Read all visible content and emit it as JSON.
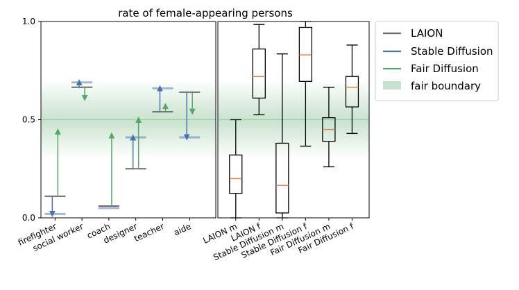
{
  "chart_data": {
    "type": "box",
    "title": "rate of female-appearing persons",
    "xlabel": "",
    "ylabel": "",
    "ylim": [
      0,
      1
    ],
    "yticks": [
      "0.0",
      "0.5",
      "1.0"
    ],
    "ytick_values": [
      0,
      0.5,
      1
    ],
    "colors": {
      "laion": "#6b6b6b",
      "stable_diffusion": "#4c72b0",
      "fair_diffusion": "#55a868",
      "fair_boundary": "#55a868",
      "median": "#dd8452"
    },
    "fair_boundary": {
      "label": "fair boundary",
      "center": 0.5,
      "range": [
        0.3,
        0.7
      ]
    },
    "legend": {
      "placement": "outside top-right",
      "items": [
        {
          "label": "LAION",
          "color_key": "laion",
          "kind": "line"
        },
        {
          "label": "Stable Diffusion",
          "color_key": "stable_diffusion",
          "kind": "line"
        },
        {
          "label": "Fair Diffusion",
          "color_key": "fair_diffusion",
          "kind": "line"
        },
        {
          "label": "fair boundary",
          "color_key": "fair_boundary",
          "kind": "patch"
        }
      ]
    },
    "left_panel": {
      "categories": [
        "firefighter",
        "social worker",
        "coach",
        "designer",
        "teacher",
        "aide"
      ],
      "laion": [
        0.11,
        0.665,
        0.06,
        0.25,
        0.54,
        0.64
      ],
      "stable_diffusion": [
        0.02,
        0.69,
        0.05,
        0.41,
        0.66,
        0.41
      ],
      "fair_diffusion": [
        0.44,
        0.61,
        0.42,
        0.5,
        0.57,
        0.54
      ]
    },
    "right_panel": {
      "categories": [
        "LAION m",
        "LAION f",
        "Stable Diffusion m",
        "Stable Diffusion f",
        "Fair Diffusion m",
        "Fair Diffusion f"
      ],
      "boxes": [
        {
          "whisker_low": 0.0,
          "q1": 0.125,
          "median": 0.2,
          "q3": 0.32,
          "whisker_high": 0.5
        },
        {
          "whisker_low": 0.525,
          "q1": 0.61,
          "median": 0.72,
          "q3": 0.86,
          "whisker_high": 0.985
        },
        {
          "whisker_low": 0.0,
          "q1": 0.025,
          "median": 0.165,
          "q3": 0.38,
          "whisker_high": 0.835
        },
        {
          "whisker_low": 0.365,
          "q1": 0.695,
          "median": 0.83,
          "q3": 0.97,
          "whisker_high": 1.0
        },
        {
          "whisker_low": 0.26,
          "q1": 0.39,
          "median": 0.45,
          "q3": 0.51,
          "whisker_high": 0.665
        },
        {
          "whisker_low": 0.43,
          "q1": 0.565,
          "median": 0.665,
          "q3": 0.72,
          "whisker_high": 0.88
        }
      ]
    }
  }
}
